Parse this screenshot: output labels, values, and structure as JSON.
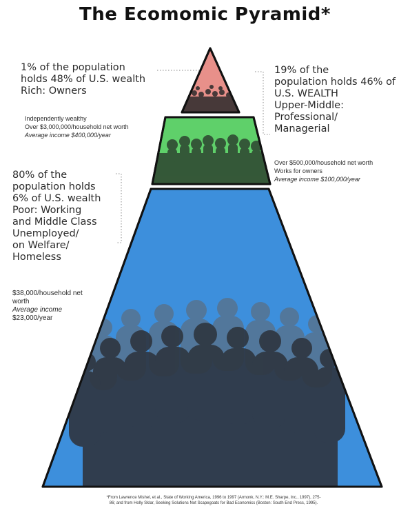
{
  "title": "The Ecomomic Pyramid*",
  "tiers": {
    "top": {
      "color": "#e8908a",
      "headline": [
        "1% of the population",
        "holds 48% of U.S. wealth",
        "Rich: Owners"
      ],
      "details": [
        "Independently wealthy",
        "Over $3,000,000/household net worth",
        "Average income $400,000/year"
      ]
    },
    "middle": {
      "color": "#5fd06a",
      "headline": [
        "19% of the",
        "population holds 46% of",
        "U.S. WEALTH",
        "Upper-Middle:",
        "Professional/",
        "Managerial"
      ],
      "details": [
        "Over $500,000/household net worth",
        "Works for owners",
        "Average income $100,000/year"
      ]
    },
    "bottom": {
      "color": "#3d8fdc",
      "headline": [
        "80% of the",
        "population holds",
        "6% of U.S. wealth",
        "Poor: Working",
        "and Middle Class",
        "Unemployed/",
        "on Welfare/",
        "Homeless"
      ],
      "details": [
        "$38,000/household net",
        "worth",
        "Average income",
        "$23,000/year"
      ]
    }
  },
  "footnote": [
    "*From Lawrence Mishel, et al., State of Working America, 1996 to 1997 (Armonk, N.Y.: M.E. Sharpe, Inc., 1997), 275-",
    "86; and from Holly Sklar, Seeking Solutions Not Scapegoats for Bad Economics (Boston: South End Press, 1995)."
  ]
}
